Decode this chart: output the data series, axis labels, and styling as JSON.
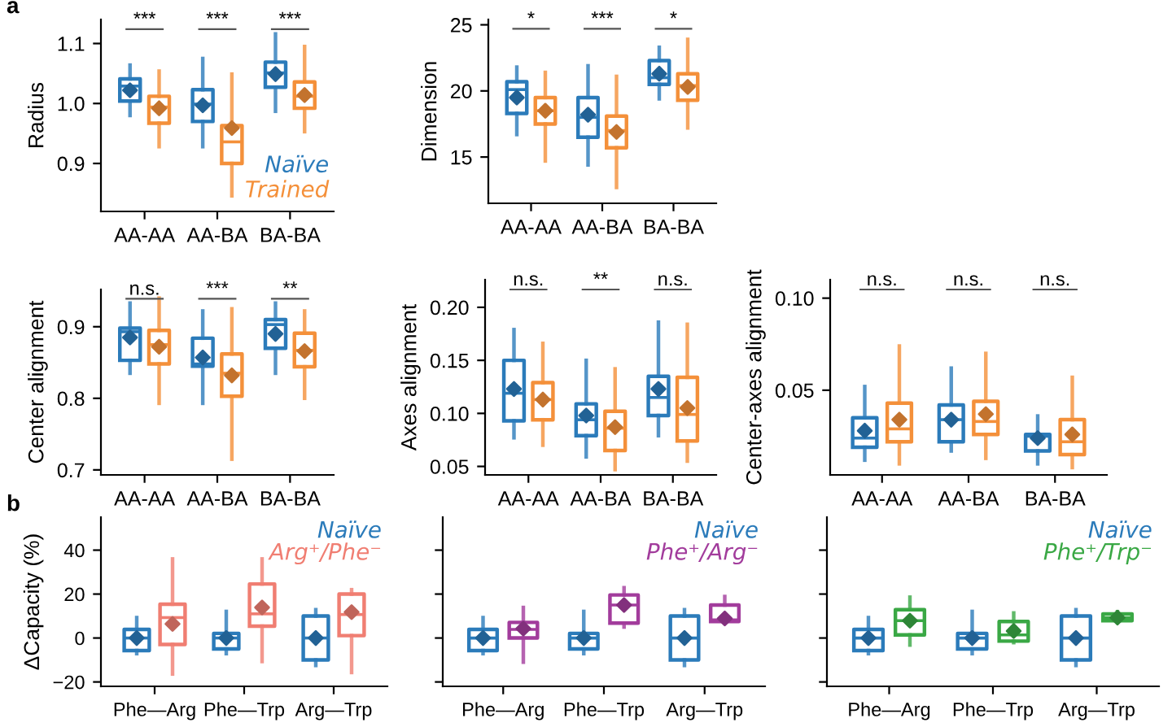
{
  "chart_data": [
    {
      "type": "box",
      "ylabel": "Radius",
      "categories": [
        "AA-AA",
        "AA-BA",
        "BA-BA"
      ],
      "ylim": [
        0.82,
        1.14
      ],
      "yticks": [
        0.9,
        {
          "value": 1.0,
          "label": "1.0"
        },
        1.1
      ],
      "legend": "bottom right",
      "marker": "diamond",
      "annotations": [
        "***",
        "***",
        "***",
        "a"
      ],
      "series": [
        {
          "name": "Naïve",
          "color": "#2b7bba",
          "boxes": [
            {
              "low": 0.98,
              "q1": 1.004,
              "median": 1.029,
              "q3": 1.041,
              "high": 1.064,
              "mean": 1.022
            },
            {
              "low": 0.928,
              "q1": 0.97,
              "median": 0.999,
              "q3": 1.023,
              "high": 1.075,
              "mean": 0.997
            },
            {
              "low": 0.987,
              "q1": 1.027,
              "median": 1.051,
              "q3": 1.069,
              "high": 1.116,
              "mean": 1.049
            }
          ]
        },
        {
          "name": "Trained",
          "color": "#f4903a",
          "boxes": [
            {
              "low": 0.928,
              "q1": 0.967,
              "median": 0.994,
              "q3": 1.012,
              "high": 1.054,
              "mean": 0.992
            },
            {
              "low": 0.846,
              "q1": 0.9,
              "median": 0.936,
              "q3": 0.963,
              "high": 1.049,
              "mean": 0.959
            },
            {
              "low": 0.953,
              "q1": 0.992,
              "median": 1.012,
              "q3": 1.036,
              "high": 1.095,
              "mean": 1.014
            }
          ]
        }
      ]
    },
    {
      "type": "box",
      "ylabel": "Dimension",
      "categories": [
        "AA-AA",
        "AA-BA",
        "BA-BA"
      ],
      "ylim": [
        11.5,
        25.4
      ],
      "yticks": [
        15,
        20,
        25
      ],
      "marker": "diamond",
      "annotations": [
        "*",
        "***",
        "*"
      ],
      "series": [
        {
          "color": "#2b7bba",
          "boxes": [
            {
              "low": 16.7,
              "q1": 18.3,
              "median": 20.1,
              "q3": 20.7,
              "high": 21.8,
              "mean": 19.5
            },
            {
              "low": 14.4,
              "q1": 16.5,
              "median": 18.0,
              "q3": 19.5,
              "high": 21.9,
              "mean": 18.2
            },
            {
              "low": 19.4,
              "q1": 20.5,
              "median": 21.0,
              "q3": 22.3,
              "high": 23.3,
              "mean": 21.3
            }
          ]
        },
        {
          "color": "#f4903a",
          "boxes": [
            {
              "low": 14.7,
              "q1": 17.5,
              "median": 18.5,
              "q3": 19.5,
              "high": 21.4,
              "mean": 18.5
            },
            {
              "low": 12.7,
              "q1": 15.7,
              "median": 17.0,
              "q3": 18.1,
              "high": 21.1,
              "mean": 16.9
            },
            {
              "low": 17.2,
              "q1": 19.3,
              "median": 20.4,
              "q3": 21.3,
              "high": 23.9,
              "mean": 20.3
            }
          ]
        }
      ]
    },
    {
      "type": "box",
      "ylabel": "Center alignment",
      "categories": [
        "AA-AA",
        "AA-BA",
        "BA-BA"
      ],
      "ylim": [
        0.693,
        0.952
      ],
      "yticks": [
        0.7,
        0.8,
        0.9
      ],
      "marker": "diamond",
      "annotations": [
        "n.s.",
        "***",
        "**"
      ],
      "series": [
        {
          "color": "#2b7bba",
          "boxes": [
            {
              "low": 0.835,
              "q1": 0.853,
              "median": 0.893,
              "q3": 0.898,
              "high": 0.933,
              "mean": 0.885
            },
            {
              "low": 0.793,
              "q1": 0.845,
              "median": 0.848,
              "q3": 0.884,
              "high": 0.922,
              "mean": 0.857
            },
            {
              "low": 0.835,
              "q1": 0.87,
              "median": 0.903,
              "q3": 0.91,
              "high": 0.933,
              "mean": 0.89
            }
          ]
        },
        {
          "color": "#f4903a",
          "boxes": [
            {
              "low": 0.793,
              "q1": 0.848,
              "median": 0.875,
              "q3": 0.895,
              "high": 0.94,
              "mean": 0.872
            },
            {
              "low": 0.715,
              "q1": 0.803,
              "median": 0.835,
              "q3": 0.862,
              "high": 0.925,
              "mean": 0.832
            },
            {
              "low": 0.8,
              "q1": 0.844,
              "median": 0.867,
              "q3": 0.891,
              "high": 0.922,
              "mean": 0.866
            }
          ]
        }
      ]
    },
    {
      "type": "box",
      "ylabel": "Axes alignment",
      "categories": [
        "AA-AA",
        "AA-BA",
        "BA-BA"
      ],
      "ylim": [
        0.042,
        0.226
      ],
      "yticks": [
        {
          "value": 0.05,
          "label": "0.05"
        },
        {
          "value": 0.1,
          "label": "0.10"
        },
        {
          "value": 0.15,
          "label": "0.15"
        },
        {
          "value": 0.2,
          "label": "0.20"
        }
      ],
      "marker": "diamond",
      "annotations": [
        "n.s.",
        "**",
        "n.s."
      ],
      "series": [
        {
          "color": "#2b7bba",
          "boxes": [
            {
              "low": 0.077,
              "q1": 0.093,
              "median": 0.119,
              "q3": 0.15,
              "high": 0.179,
              "mean": 0.123
            },
            {
              "low": 0.059,
              "q1": 0.079,
              "median": 0.094,
              "q3": 0.109,
              "high": 0.15,
              "mean": 0.098
            },
            {
              "low": 0.079,
              "q1": 0.098,
              "median": 0.115,
              "q3": 0.135,
              "high": 0.186,
              "mean": 0.123
            }
          ]
        },
        {
          "color": "#f4903a",
          "boxes": [
            {
              "low": 0.07,
              "q1": 0.094,
              "median": 0.113,
              "q3": 0.129,
              "high": 0.166,
              "mean": 0.113
            },
            {
              "low": 0.047,
              "q1": 0.065,
              "median": 0.086,
              "q3": 0.102,
              "high": 0.142,
              "mean": 0.087
            },
            {
              "low": 0.055,
              "q1": 0.074,
              "median": 0.099,
              "q3": 0.134,
              "high": 0.184,
              "mean": 0.105
            }
          ]
        }
      ]
    },
    {
      "type": "box",
      "ylabel": "Center-axes alignment",
      "categories": [
        "AA-AA",
        "AA-BA",
        "BA-BA"
      ],
      "ylim": [
        0.004,
        0.11
      ],
      "yticks": [
        {
          "value": 0.05,
          "label": "0.05"
        },
        {
          "value": 0.1,
          "label": "0.10"
        }
      ],
      "marker": "diamond",
      "annotations": [
        "n.s.",
        "n.s.",
        "n.s."
      ],
      "series": [
        {
          "color": "#2b7bba",
          "boxes": [
            {
              "low": 0.012,
              "q1": 0.019,
              "median": 0.024,
              "q3": 0.035,
              "high": 0.052,
              "mean": 0.028
            },
            {
              "low": 0.017,
              "q1": 0.022,
              "median": 0.034,
              "q3": 0.042,
              "high": 0.062,
              "mean": 0.034
            },
            {
              "low": 0.01,
              "q1": 0.017,
              "median": 0.025,
              "q3": 0.026,
              "high": 0.036,
              "mean": 0.024
            }
          ]
        },
        {
          "color": "#f4903a",
          "boxes": [
            {
              "low": 0.01,
              "q1": 0.022,
              "median": 0.029,
              "q3": 0.043,
              "high": 0.074,
              "mean": 0.034
            },
            {
              "low": 0.013,
              "q1": 0.026,
              "median": 0.033,
              "q3": 0.044,
              "high": 0.07,
              "mean": 0.037
            },
            {
              "low": 0.008,
              "q1": 0.015,
              "median": 0.022,
              "q3": 0.034,
              "high": 0.057,
              "mean": 0.026
            }
          ]
        }
      ]
    },
    {
      "type": "box",
      "ylabel": "ΔCapacity (%)",
      "categories": [
        "Phe—Arg",
        "Phe—Trp",
        "Arg—Trp"
      ],
      "ylim": [
        -22,
        55
      ],
      "yticks": [
        {
          "value": -20,
          "label": "−20"
        },
        0,
        20,
        40
      ],
      "legend": "top right",
      "marker": "diamond",
      "annotations": [
        "b"
      ],
      "series": [
        {
          "name": "Naïve",
          "color": "#2b7bba",
          "boxes": [
            {
              "low": -7.1,
              "q1": -5.7,
              "median": 0,
              "q3": 3.9,
              "high": 9.3,
              "mean": 0
            },
            {
              "low": -7.1,
              "q1": -5,
              "median": 0,
              "q3": 2.1,
              "high": 12.1,
              "mean": 0
            },
            {
              "low": -12.5,
              "q1": -10,
              "median": 0,
              "q3": 10,
              "high": 12.9,
              "mean": 0
            }
          ]
        },
        {
          "name": "Arg⁺/Phe⁻",
          "color": "#f07e72",
          "boxes": [
            {
              "low": -16.4,
              "q1": -2.9,
              "median": 9.3,
              "q3": 15.4,
              "high": 36,
              "mean": 6.4
            },
            {
              "low": -10.7,
              "q1": 5.4,
              "median": 11,
              "q3": 24.6,
              "high": 36,
              "mean": 13.9
            },
            {
              "low": -15.7,
              "q1": 1.1,
              "median": 10.7,
              "q3": 20,
              "high": 22,
              "mean": 11.8
            }
          ]
        }
      ]
    },
    {
      "type": "box",
      "categories": [
        "Phe—Arg",
        "Phe—Trp",
        "Arg—Trp"
      ],
      "ylim": [
        -22,
        55
      ],
      "yticks": [
        -20,
        0,
        20,
        40
      ],
      "tick_labels": "x",
      "legend": "top right",
      "marker": "diamond",
      "series": [
        {
          "name": "Naïve",
          "color": "#2b7bba",
          "boxes": [
            {
              "low": -7.1,
              "q1": -5.7,
              "median": 0,
              "q3": 3.9,
              "high": 9.3,
              "mean": 0
            },
            {
              "low": -7.1,
              "q1": -5,
              "median": 0,
              "q3": 2.1,
              "high": 12.1,
              "mean": 0
            },
            {
              "low": -12.5,
              "q1": -10,
              "median": 0,
              "q3": 10,
              "high": 12.9,
              "mean": 0
            }
          ]
        },
        {
          "name": "Phe⁺/Arg⁻",
          "color": "#a23c9c",
          "boxes": [
            {
              "low": -11,
              "q1": 0,
              "median": 3.9,
              "q3": 7.1,
              "high": 13.9,
              "mean": 4.3
            },
            {
              "low": 5,
              "q1": 6.8,
              "median": 15,
              "q3": 19.6,
              "high": 22.9,
              "mean": 15
            },
            {
              "low": 7.5,
              "q1": 7.5,
              "median": 8.2,
              "q3": 15,
              "high": 18.9,
              "mean": 8.9
            }
          ]
        }
      ]
    },
    {
      "type": "box",
      "categories": [
        "Phe—Arg",
        "Phe—Trp",
        "Arg—Trp"
      ],
      "ylim": [
        -22,
        55
      ],
      "yticks": [
        -20,
        0,
        20,
        40
      ],
      "tick_labels": "x",
      "legend": "top right",
      "marker": "diamond",
      "series": [
        {
          "name": "Naïve",
          "color": "#2b7bba",
          "boxes": [
            {
              "low": -7.1,
              "q1": -5.7,
              "median": 0,
              "q3": 3.9,
              "high": 9.3,
              "mean": 0
            },
            {
              "low": -7.1,
              "q1": -5,
              "median": 0,
              "q3": 2.1,
              "high": 12.1,
              "mean": 0
            },
            {
              "low": -12.5,
              "q1": -10,
              "median": 0,
              "q3": 10,
              "high": 12.9,
              "mean": 0
            }
          ]
        },
        {
          "name": "Phe⁺/Trp⁻",
          "color": "#3aa845",
          "boxes": [
            {
              "low": -3.2,
              "q1": 1.4,
              "median": 7.9,
              "q3": 12.9,
              "high": 18.6,
              "mean": 7.9
            },
            {
              "low": -2.1,
              "q1": -1.4,
              "median": 1.4,
              "q3": 7.5,
              "high": 11.4,
              "mean": 3.2
            },
            {
              "low": 7.9,
              "q1": 7.9,
              "median": 9.3,
              "q3": 11,
              "high": 12,
              "mean": 9.3
            }
          ]
        }
      ]
    }
  ]
}
